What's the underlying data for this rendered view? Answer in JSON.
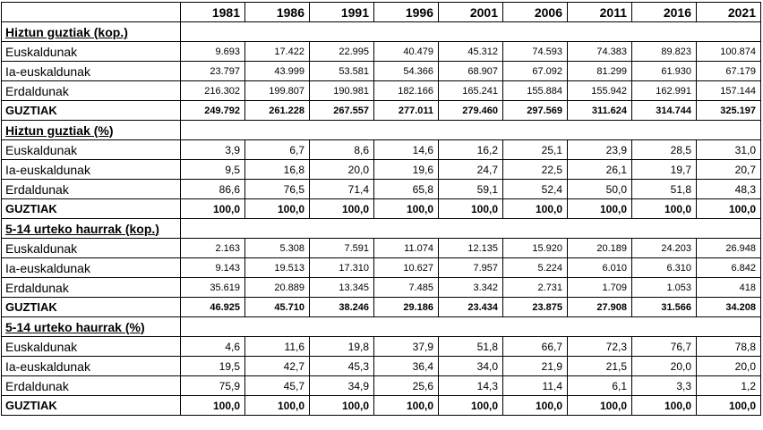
{
  "years": [
    "1981",
    "1986",
    "1991",
    "1996",
    "2001",
    "2006",
    "2011",
    "2016",
    "2021"
  ],
  "sections": [
    {
      "title": "Hiztun guztiak (kop.)",
      "kind": "count",
      "rows": [
        {
          "label": "Euskaldunak",
          "values": [
            "9.693",
            "17.422",
            "22.995",
            "40.479",
            "45.312",
            "74.593",
            "74.383",
            "89.823",
            "100.874"
          ]
        },
        {
          "label": "Ia-euskaldunak",
          "values": [
            "23.797",
            "43.999",
            "53.581",
            "54.366",
            "68.907",
            "67.092",
            "81.299",
            "61.930",
            "67.179"
          ]
        },
        {
          "label": "Erdaldunak",
          "values": [
            "216.302",
            "199.807",
            "190.981",
            "182.166",
            "165.241",
            "155.884",
            "155.942",
            "162.991",
            "157.144"
          ]
        }
      ],
      "total": {
        "label": "GUZTIAK",
        "values": [
          "249.792",
          "261.228",
          "267.557",
          "277.011",
          "279.460",
          "297.569",
          "311.624",
          "314.744",
          "325.197"
        ]
      }
    },
    {
      "title": "Hiztun guztiak (%)",
      "kind": "pct",
      "rows": [
        {
          "label": "Euskaldunak",
          "values": [
            "3,9",
            "6,7",
            "8,6",
            "14,6",
            "16,2",
            "25,1",
            "23,9",
            "28,5",
            "31,0"
          ]
        },
        {
          "label": "Ia-euskaldunak",
          "values": [
            "9,5",
            "16,8",
            "20,0",
            "19,6",
            "24,7",
            "22,5",
            "26,1",
            "19,7",
            "20,7"
          ]
        },
        {
          "label": "Erdaldunak",
          "values": [
            "86,6",
            "76,5",
            "71,4",
            "65,8",
            "59,1",
            "52,4",
            "50,0",
            "51,8",
            "48,3"
          ]
        }
      ],
      "total": {
        "label": "GUZTIAK",
        "values": [
          "100,0",
          "100,0",
          "100,0",
          "100,0",
          "100,0",
          "100,0",
          "100,0",
          "100,0",
          "100,0"
        ]
      }
    },
    {
      "title": "5-14 urteko haurrak (kop.)",
      "kind": "count",
      "rows": [
        {
          "label": "Euskaldunak",
          "values": [
            "2.163",
            "5.308",
            "7.591",
            "11.074",
            "12.135",
            "15.920",
            "20.189",
            "24.203",
            "26.948"
          ]
        },
        {
          "label": "Ia-euskaldunak",
          "values": [
            "9.143",
            "19.513",
            "17.310",
            "10.627",
            "7.957",
            "5.224",
            "6.010",
            "6.310",
            "6.842"
          ]
        },
        {
          "label": "Erdaldunak",
          "values": [
            "35.619",
            "20.889",
            "13.345",
            "7.485",
            "3.342",
            "2.731",
            "1.709",
            "1.053",
            "418"
          ]
        }
      ],
      "total": {
        "label": "GUZTIAK",
        "values": [
          "46.925",
          "45.710",
          "38.246",
          "29.186",
          "23.434",
          "23.875",
          "27.908",
          "31.566",
          "34.208"
        ]
      }
    },
    {
      "title": "5-14 urteko haurrak (%)",
      "kind": "pct",
      "rows": [
        {
          "label": "Euskaldunak",
          "values": [
            "4,6",
            "11,6",
            "19,8",
            "37,9",
            "51,8",
            "66,7",
            "72,3",
            "76,7",
            "78,8"
          ]
        },
        {
          "label": "Ia-euskaldunak",
          "values": [
            "19,5",
            "42,7",
            "45,3",
            "36,4",
            "34,0",
            "21,9",
            "21,5",
            "20,0",
            "20,0"
          ]
        },
        {
          "label": "Erdaldunak",
          "values": [
            "75,9",
            "45,7",
            "34,9",
            "25,6",
            "14,3",
            "11,4",
            "6,1",
            "3,3",
            "1,2"
          ]
        }
      ],
      "total": {
        "label": "GUZTIAK",
        "values": [
          "100,0",
          "100,0",
          "100,0",
          "100,0",
          "100,0",
          "100,0",
          "100,0",
          "100,0",
          "100,0"
        ]
      }
    }
  ]
}
